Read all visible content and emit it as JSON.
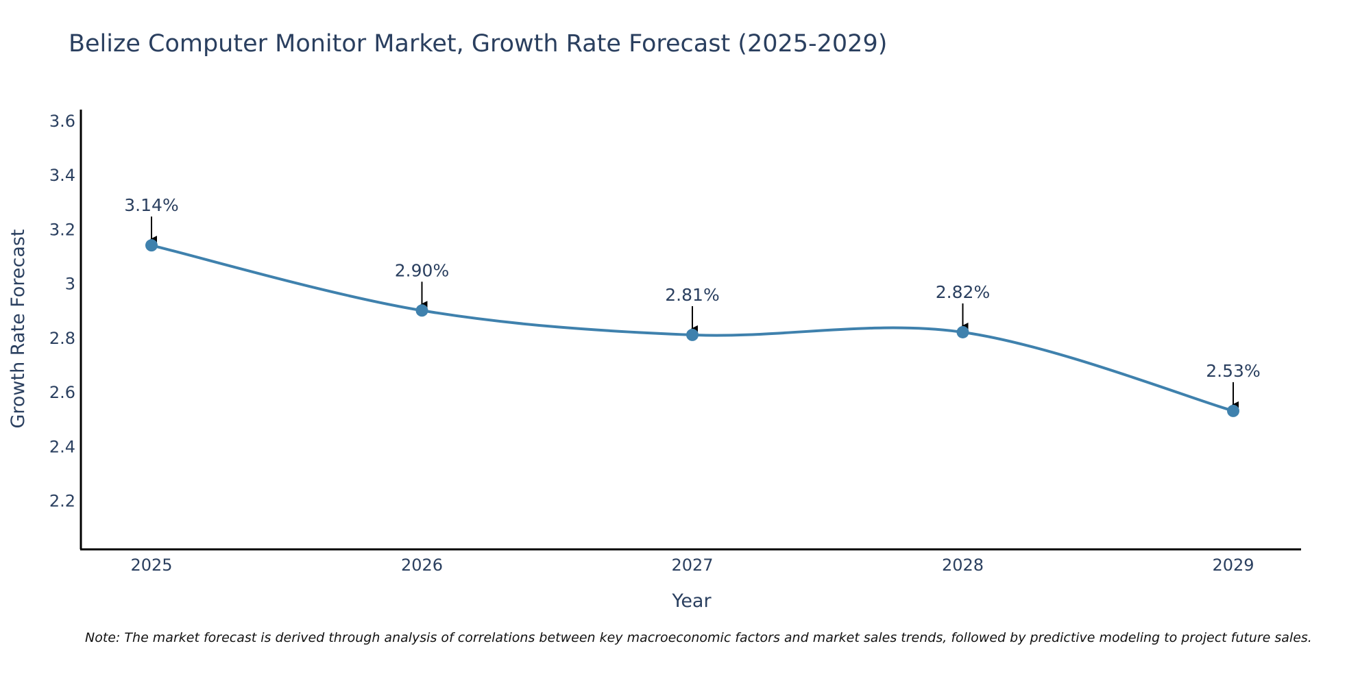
{
  "chart_data": {
    "type": "line",
    "title": "Belize Computer Monitor Market, Growth Rate Forecast (2025-2029)",
    "xlabel": "Year",
    "ylabel": "Growth Rate Forecast",
    "categories": [
      "2025",
      "2026",
      "2027",
      "2028",
      "2029"
    ],
    "values": [
      3.14,
      2.9,
      2.81,
      2.82,
      2.53
    ],
    "data_labels": [
      "3.14%",
      "2.90%",
      "2.81%",
      "2.82%",
      "2.53%"
    ],
    "ylim": [
      2.02,
      3.64
    ],
    "yticks": [
      2.2,
      2.4,
      2.6,
      2.8,
      3,
      3.2,
      3.4,
      3.6
    ],
    "ytick_labels": [
      "2.2",
      "2.4",
      "2.6",
      "2.8",
      "3",
      "3.2",
      "3.4",
      "3.6"
    ],
    "grid": false,
    "line_shape": "spline",
    "line_color": "#3f81ad",
    "marker_color": "#3f81ad"
  },
  "footnote": "Note: The market forecast is derived through analysis of correlations between key macroeconomic factors and market sales trends, followed by predictive modeling to project future sales."
}
